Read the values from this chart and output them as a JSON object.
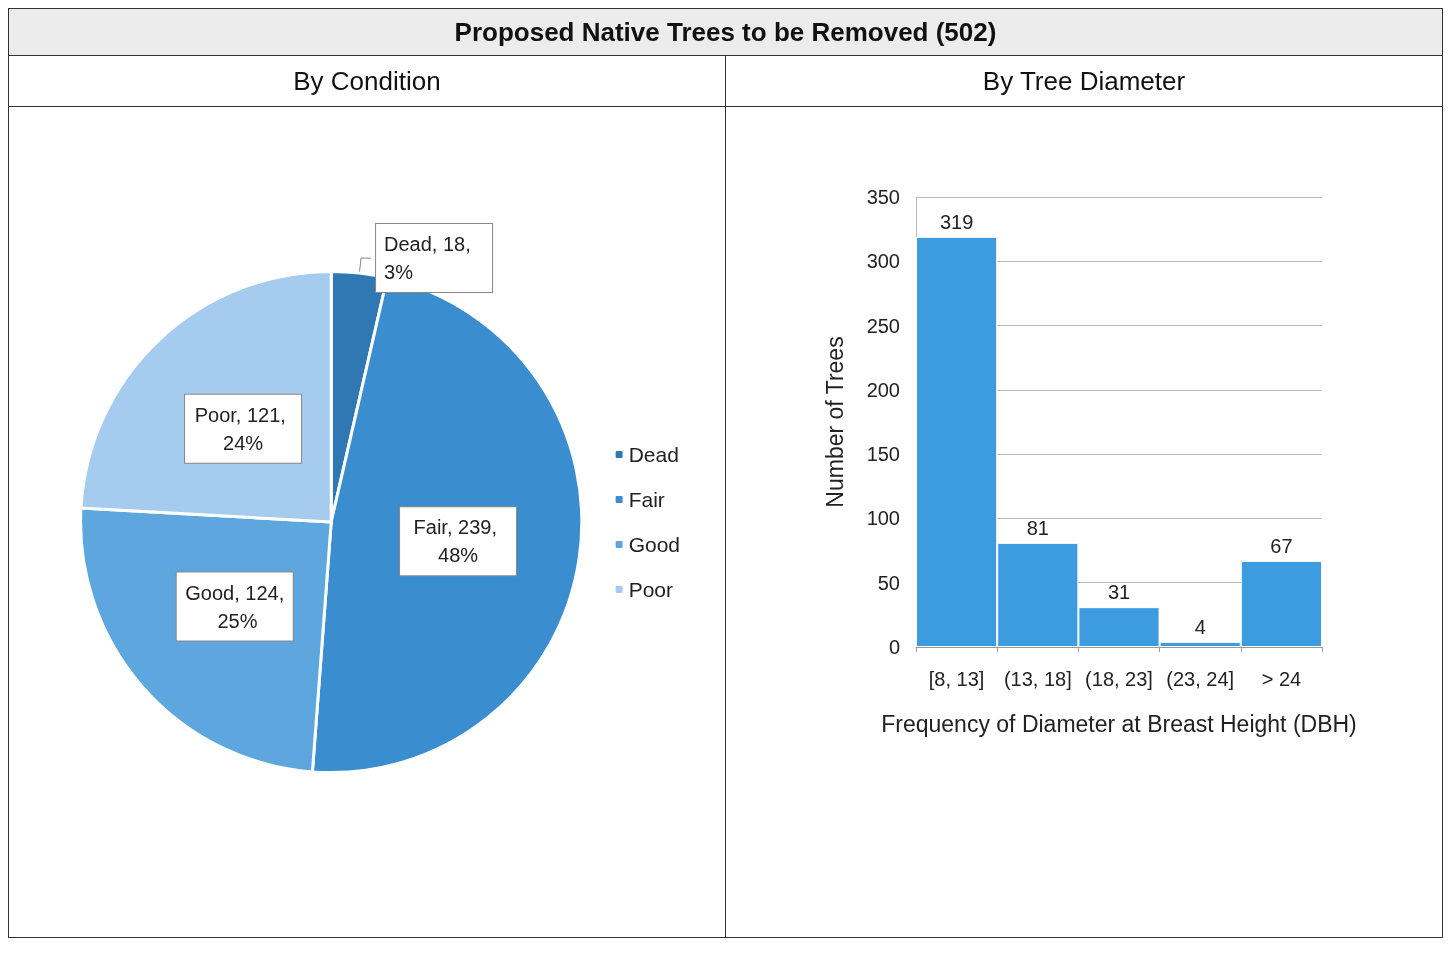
{
  "chart_data": [
    {
      "type": "pie",
      "title": "Proposed Native Trees to be Removed (502)",
      "subtitle": "By Condition",
      "categories": [
        "Dead",
        "Fair",
        "Good",
        "Poor"
      ],
      "values": [
        18,
        239,
        124,
        121
      ],
      "colors": [
        "#2f78b4",
        "#3a8ed0",
        "#5ea6de",
        "#a5cbee"
      ],
      "value_labels": [
        "Dead, 18, 3%",
        "Fair, 239, 48%",
        "Good, 124, 25%",
        "Poor, 121, 24%"
      ],
      "legend": "right"
    },
    {
      "type": "bar",
      "title": "By Tree Diameter",
      "categories": [
        "[8, 13]",
        "(13, 18]",
        "(18, 23]",
        "(23, 24]",
        "> 24"
      ],
      "values": [
        319,
        81,
        31,
        4,
        67
      ],
      "color": "#3d9be0",
      "data_labels": true,
      "ylim": [
        0,
        350
      ],
      "yticks": [
        0,
        50,
        100,
        150,
        200,
        250,
        300,
        350
      ],
      "grid": "y",
      "xlabel": "Frequency of Diameter at Breast Height (DBH)",
      "ylabel": "Number of Trees",
      "legend": false
    }
  ]
}
